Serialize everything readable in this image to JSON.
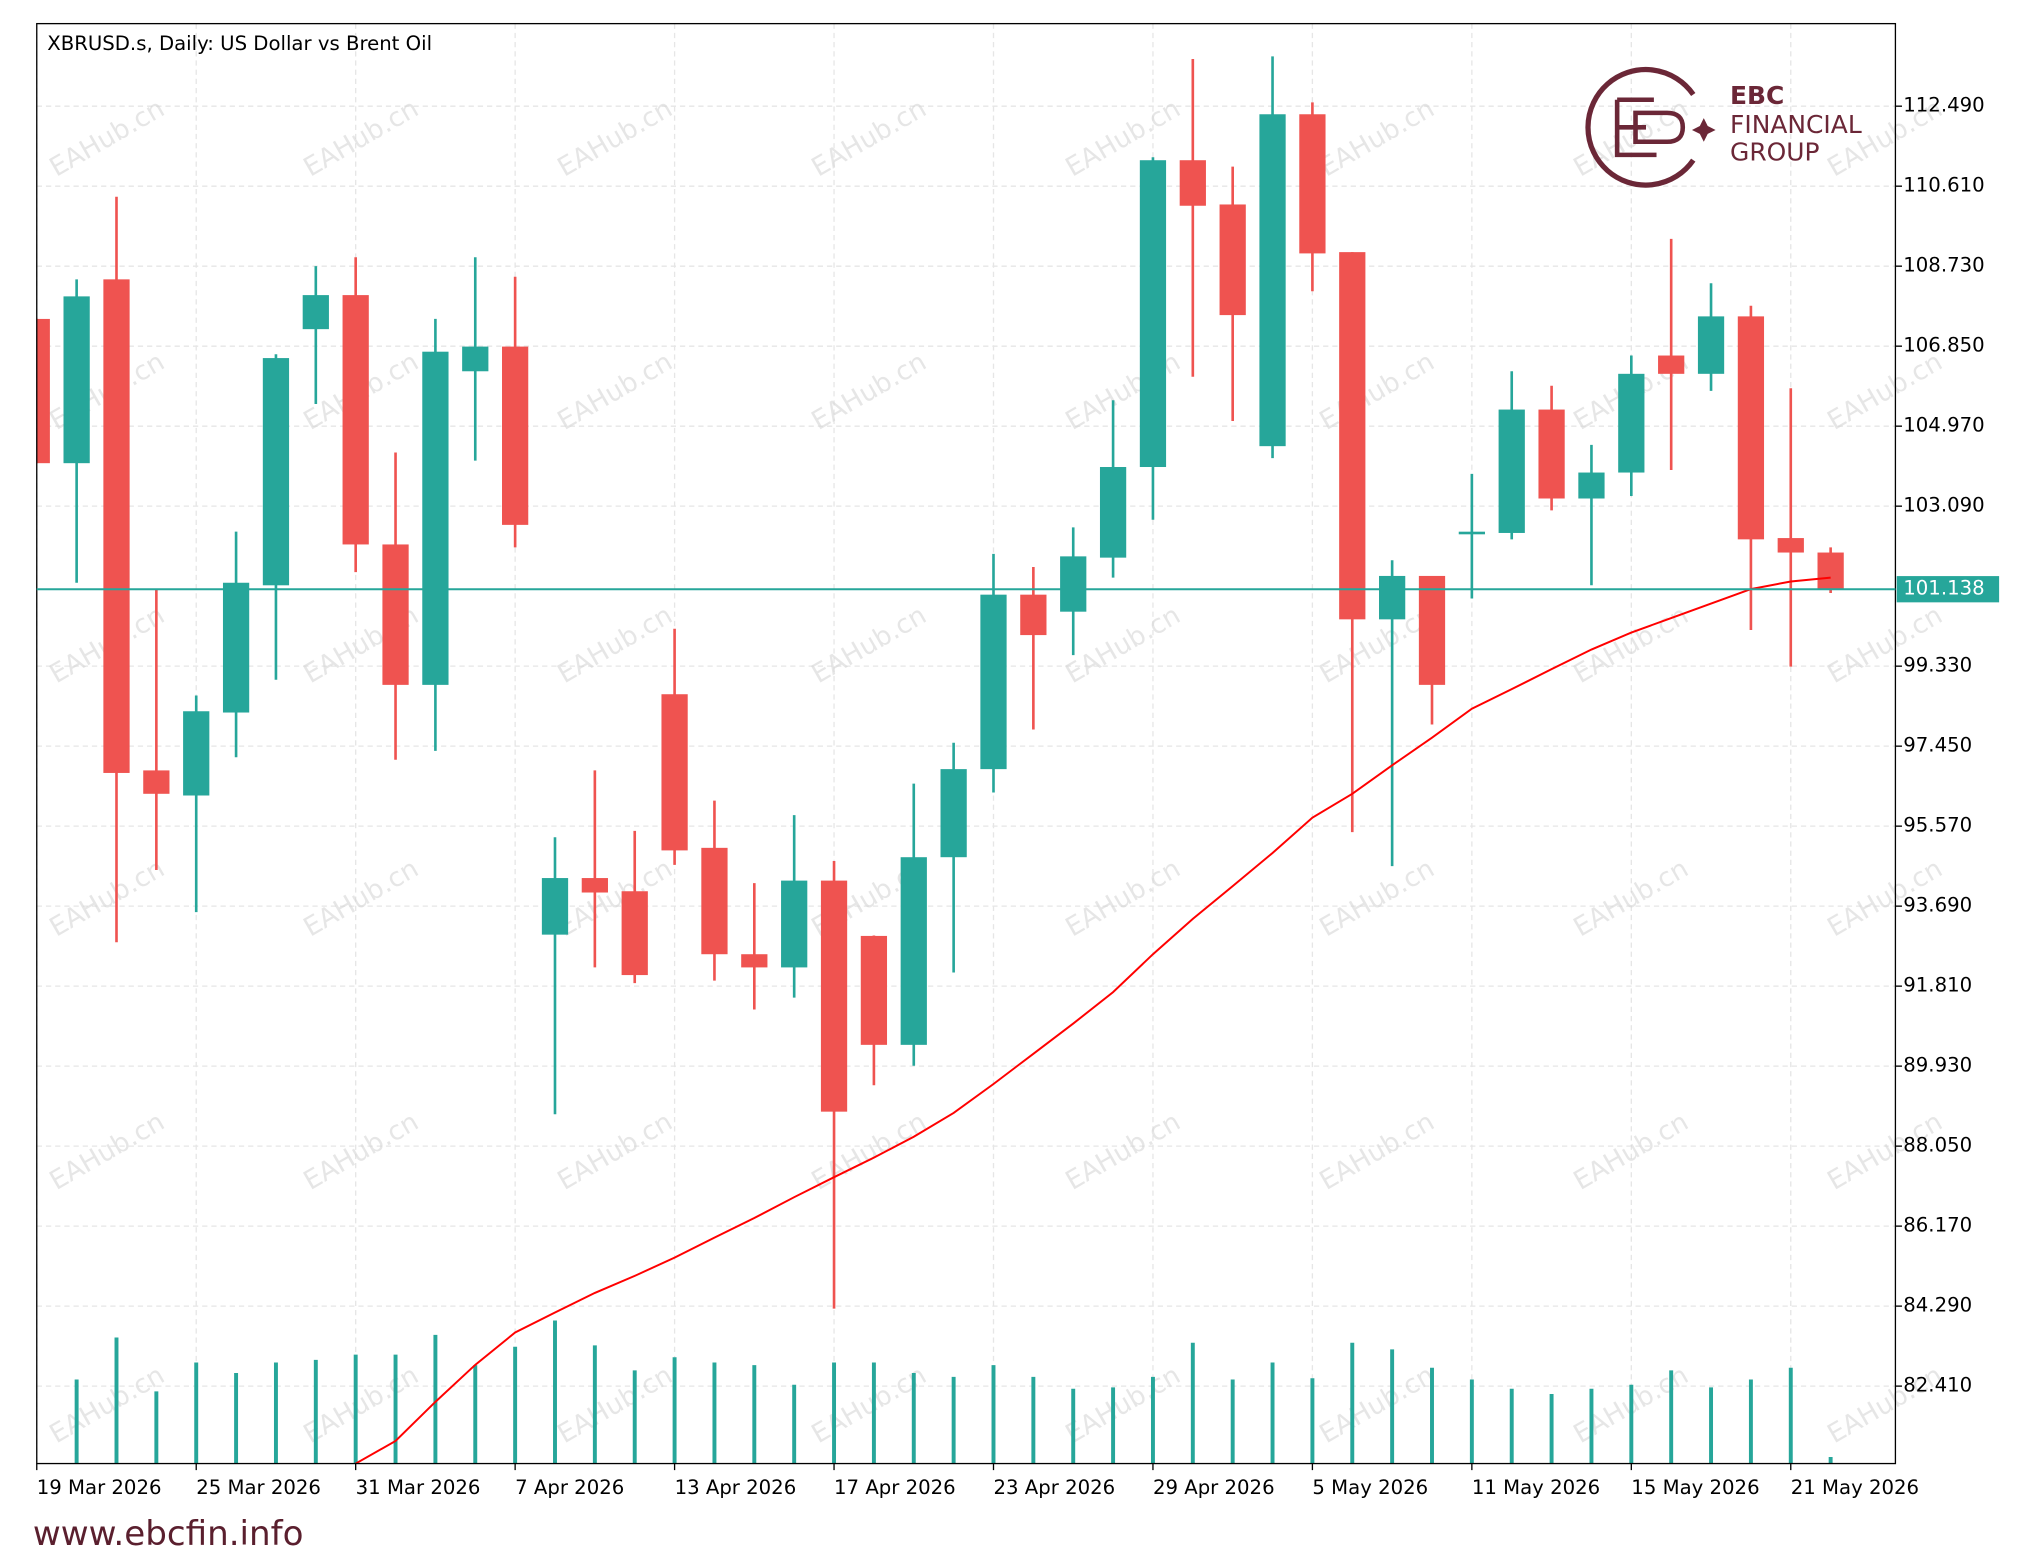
{
  "chart_data": {
    "type": "candlestick",
    "title": "XBRUSD.s, Daily:  US Dollar vs Brent Oil",
    "watermark": "EAHub.cn",
    "logo": {
      "line1": "EBC",
      "line2": "FINANCIAL",
      "line3": "GROUP"
    },
    "footer": "www.ebcfin.info",
    "categories": [
      "19 Mar 2026",
      null,
      null,
      null,
      "25 Mar 2026",
      null,
      null,
      null,
      "31 Mar 2026",
      null,
      null,
      null,
      "7 Apr 2026",
      null,
      null,
      null,
      "13 Apr 2026",
      null,
      null,
      null,
      "17 Apr 2026",
      null,
      null,
      null,
      "23 Apr 2026",
      null,
      null,
      null,
      "29 Apr 2026",
      null,
      null,
      null,
      "5 May 2026",
      null,
      null,
      null,
      "11 May 2026",
      null,
      null,
      null,
      "15 May 2026",
      null,
      null,
      null,
      "21 May 2026",
      null
    ],
    "open": [
      107.49,
      104.1,
      108.42,
      96.88,
      96.29,
      98.24,
      101.23,
      107.25,
      108.05,
      102.19,
      98.89,
      106.26,
      106.84,
      93.02,
      94.35,
      94.04,
      98.67,
      95.06,
      92.56,
      92.25,
      94.29,
      92.99,
      90.43,
      94.84,
      96.91,
      101.01,
      100.61,
      101.88,
      104.01,
      111.22,
      110.18,
      104.5,
      112.3,
      109.06,
      100.43,
      101.45,
      102.46,
      102.46,
      105.36,
      103.27,
      103.88,
      106.63,
      106.2,
      107.55,
      102.34,
      102.0
    ],
    "high": [
      107.49,
      108.42,
      110.36,
      101.14,
      98.64,
      102.49,
      106.66,
      108.73,
      108.94,
      104.35,
      107.49,
      108.94,
      108.48,
      95.31,
      96.88,
      95.46,
      100.21,
      96.17,
      94.23,
      95.83,
      94.75,
      93.0,
      96.57,
      97.53,
      101.97,
      101.66,
      102.59,
      105.58,
      111.29,
      113.6,
      111.07,
      113.66,
      112.58,
      109.06,
      101.82,
      101.45,
      103.85,
      106.26,
      105.92,
      104.53,
      106.63,
      109.37,
      108.33,
      107.8,
      105.86,
      102.12
    ],
    "low": [
      104.1,
      101.29,
      92.84,
      94.54,
      93.55,
      97.19,
      99.01,
      105.49,
      101.54,
      97.13,
      97.34,
      104.16,
      102.12,
      88.8,
      92.25,
      91.88,
      94.66,
      91.94,
      91.26,
      91.54,
      84.23,
      89.48,
      89.94,
      92.13,
      96.36,
      97.84,
      99.59,
      101.41,
      102.77,
      106.13,
      105.09,
      104.22,
      108.14,
      95.43,
      94.63,
      97.96,
      100.92,
      102.31,
      102.99,
      101.23,
      103.33,
      103.94,
      105.8,
      100.18,
      99.32,
      101.05
    ],
    "close": [
      104.1,
      108.02,
      96.82,
      96.33,
      98.27,
      101.29,
      106.57,
      108.05,
      102.19,
      98.89,
      106.72,
      106.84,
      102.65,
      94.35,
      94.01,
      92.07,
      95.0,
      92.56,
      92.25,
      94.29,
      88.86,
      90.43,
      94.84,
      96.91,
      101.01,
      100.06,
      101.91,
      104.01,
      111.22,
      110.15,
      107.58,
      112.3,
      109.03,
      100.43,
      101.45,
      98.89,
      102.49,
      105.36,
      103.27,
      103.88,
      106.2,
      106.2,
      107.55,
      102.31,
      102.0,
      101.14
    ],
    "up_color": "#26a69a",
    "down_color": "#ef5350",
    "volume": {
      "color": "#26a69a",
      "values": [
        null,
        64,
        96,
        55,
        77,
        69,
        77,
        79,
        83,
        83,
        98,
        75,
        89,
        109,
        90,
        71,
        81,
        77,
        75,
        60,
        77,
        77,
        69,
        66,
        75,
        66,
        57,
        58,
        66,
        92,
        64,
        77,
        65,
        92,
        87,
        73,
        64,
        57,
        53,
        57,
        60,
        71,
        58,
        64,
        73,
        5
      ]
    },
    "moving_average": {
      "color": "#ff0000",
      "values": [
        null,
        null,
        null,
        null,
        null,
        null,
        null,
        null,
        80.59,
        81.12,
        82.04,
        82.91,
        83.67,
        84.14,
        84.6,
        85.0,
        85.43,
        85.9,
        86.36,
        86.85,
        87.32,
        87.78,
        88.27,
        88.83,
        89.51,
        90.22,
        90.93,
        91.67,
        92.56,
        93.39,
        94.16,
        94.94,
        95.77,
        96.33,
        97.0,
        97.65,
        98.33,
        98.79,
        99.26,
        99.72,
        100.12,
        100.46,
        100.8,
        101.14,
        101.32,
        101.41
      ]
    },
    "current_price": {
      "value": 101.138,
      "label": "101.138",
      "color": "#26a69a"
    },
    "ylim": [
      80.59,
      114.43
    ],
    "yticks": [
      {
        "value": 112.49,
        "label": "112.490"
      },
      {
        "value": 110.61,
        "label": "110.610"
      },
      {
        "value": 108.73,
        "label": "108.730"
      },
      {
        "value": 106.85,
        "label": "106.850"
      },
      {
        "value": 104.97,
        "label": "104.970"
      },
      {
        "value": 103.09,
        "label": "103.090"
      },
      {
        "value": 99.33,
        "label": "99.330"
      },
      {
        "value": 97.45,
        "label": "97.450"
      },
      {
        "value": 95.57,
        "label": "95.570"
      },
      {
        "value": 93.69,
        "label": "93.690"
      },
      {
        "value": 91.81,
        "label": "91.810"
      },
      {
        "value": 89.93,
        "label": "89.930"
      },
      {
        "value": 88.05,
        "label": "88.050"
      },
      {
        "value": 86.17,
        "label": "86.170"
      },
      {
        "value": 84.29,
        "label": "84.290"
      },
      {
        "value": 82.41,
        "label": "82.410"
      }
    ],
    "grid": true
  }
}
